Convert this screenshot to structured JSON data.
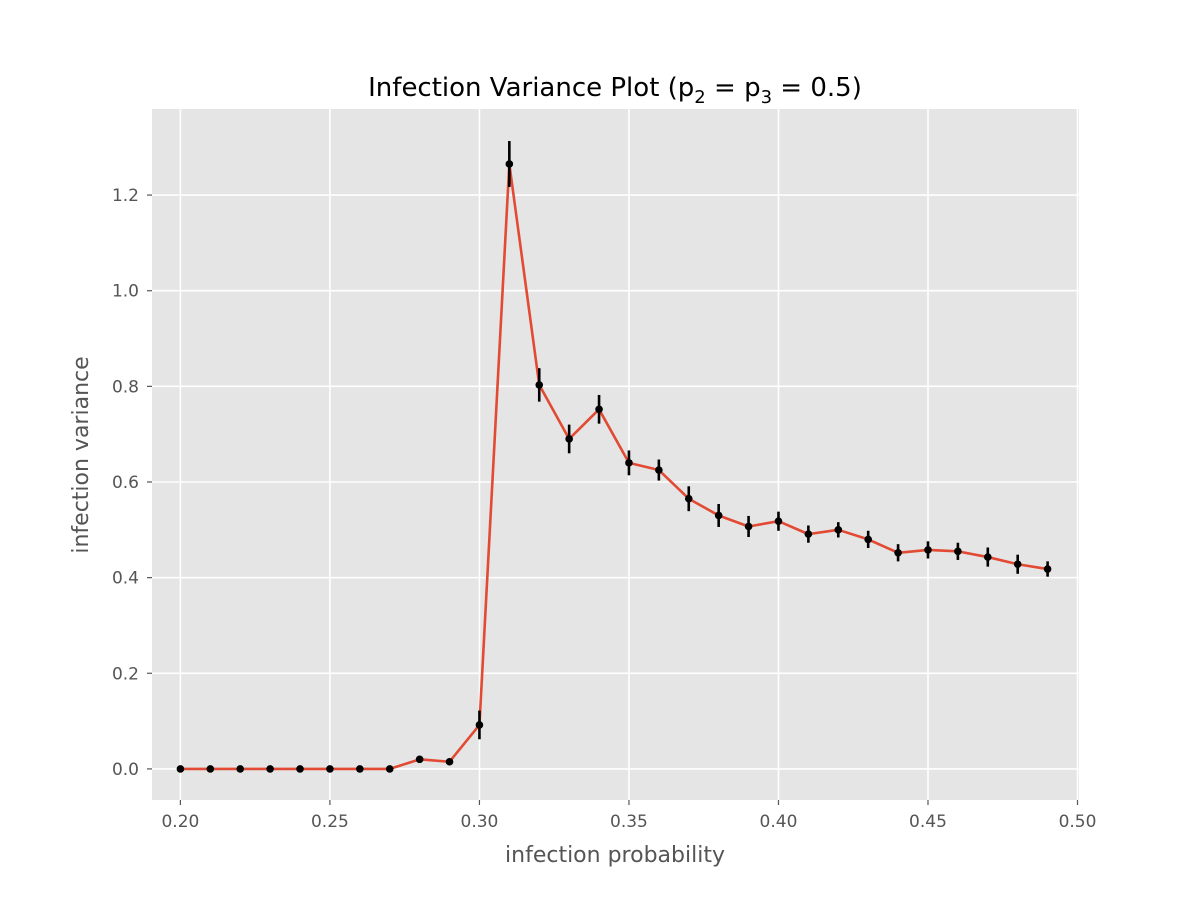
{
  "chart_data": {
    "type": "line",
    "title": "Infection Variance Plot (p",
    "title_sub_1": "2",
    "title_mid": " = p",
    "title_sub_2": "3",
    "title_end": " = 0.5)",
    "xlabel": "infection probability",
    "ylabel": "infection variance",
    "xlim": [
      0.1905,
      0.5005
    ],
    "ylim": [
      -0.065,
      1.38
    ],
    "x_ticks": [
      "0.20",
      "0.25",
      "0.30",
      "0.35",
      "0.40",
      "0.45",
      "0.50"
    ],
    "x_tick_values": [
      0.2,
      0.25,
      0.3,
      0.35,
      0.4,
      0.45,
      0.5
    ],
    "y_ticks": [
      "0.0",
      "0.2",
      "0.4",
      "0.6",
      "0.8",
      "1.0",
      "1.2"
    ],
    "y_tick_values": [
      0.0,
      0.2,
      0.4,
      0.6,
      0.8,
      1.0,
      1.2
    ],
    "grid": true,
    "series": [
      {
        "x": [
          0.2,
          0.21,
          0.22,
          0.23,
          0.24,
          0.25,
          0.26,
          0.27,
          0.28,
          0.29,
          0.3,
          0.31,
          0.32,
          0.33,
          0.34,
          0.35,
          0.36,
          0.37,
          0.38,
          0.39,
          0.4,
          0.41,
          0.42,
          0.43,
          0.44,
          0.45,
          0.46,
          0.47,
          0.48,
          0.49
        ],
        "y": [
          0.0,
          0.0,
          0.0,
          0.0,
          0.0,
          0.0,
          0.0,
          0.0,
          0.02,
          0.015,
          0.092,
          1.265,
          0.803,
          0.69,
          0.752,
          0.64,
          0.625,
          0.565,
          0.53,
          0.507,
          0.518,
          0.491,
          0.5,
          0.48,
          0.452,
          0.458,
          0.455,
          0.443,
          0.428,
          0.418
        ],
        "yerr": [
          0.002,
          0.002,
          0.002,
          0.002,
          0.002,
          0.002,
          0.002,
          0.002,
          0.004,
          0.004,
          0.03,
          0.048,
          0.035,
          0.03,
          0.03,
          0.026,
          0.022,
          0.026,
          0.024,
          0.022,
          0.02,
          0.018,
          0.016,
          0.018,
          0.018,
          0.018,
          0.018,
          0.02,
          0.02,
          0.016
        ]
      }
    ],
    "colors": {
      "line": "#e24a33",
      "marker": "#000000",
      "plot_bg": "#e5e5e5",
      "grid": "#ffffff",
      "tick_text": "#555555"
    }
  }
}
